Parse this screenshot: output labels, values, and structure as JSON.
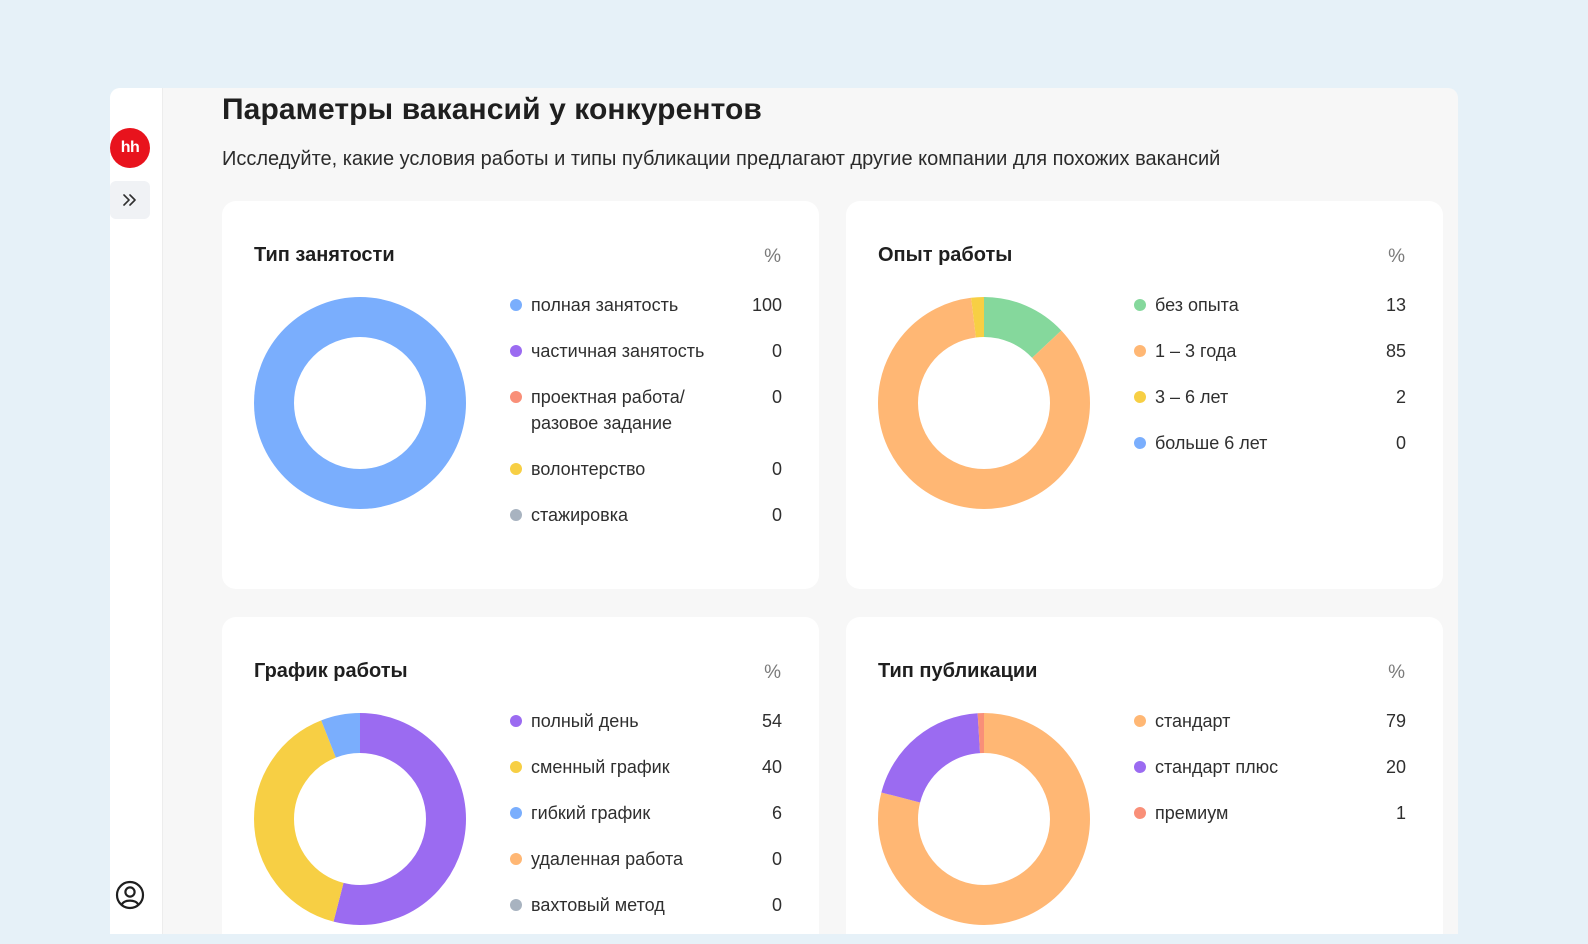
{
  "app": {
    "logo_text": "hh"
  },
  "page": {
    "title": "Параметры вакансий у конкурентов",
    "subtitle": "Исследуйте, какие условия работы и типы публикации предлагают другие компании для похожих вакансий"
  },
  "icons": {
    "expand": "double-chevron-right-icon",
    "profile": "user-circle-icon"
  },
  "colors": {
    "blue": "#7aaefd",
    "purple": "#9b6bf1",
    "salmon": "#f98f78",
    "yellow": "#f7cf44",
    "gray": "#a8b3c0",
    "green": "#85d89c",
    "orange": "#ffb774"
  },
  "cards": [
    {
      "title": "Тип занятости",
      "unit": "%",
      "chart_data": {
        "type": "donut",
        "series": [
          {
            "label": "полная занятость",
            "value": 100,
            "color": "#7aaefd"
          },
          {
            "label": "частичная занятость",
            "value": 0,
            "color": "#9b6bf1"
          },
          {
            "label": "проектная работа/ разовое задание",
            "value": 0,
            "color": "#f98f78"
          },
          {
            "label": "волонтерство",
            "value": 0,
            "color": "#f7cf44"
          },
          {
            "label": "стажировка",
            "value": 0,
            "color": "#a8b3c0"
          }
        ]
      }
    },
    {
      "title": "Опыт работы",
      "unit": "%",
      "chart_data": {
        "type": "donut",
        "series": [
          {
            "label": "без опыта",
            "value": 13,
            "color": "#85d89c"
          },
          {
            "label": "1 – 3 года",
            "value": 85,
            "color": "#ffb774"
          },
          {
            "label": "3 – 6 лет",
            "value": 2,
            "color": "#f7cf44"
          },
          {
            "label": "больше 6 лет",
            "value": 0,
            "color": "#7aaefd"
          }
        ]
      }
    },
    {
      "title": "График работы",
      "unit": "%",
      "chart_data": {
        "type": "donut",
        "series": [
          {
            "label": "полный день",
            "value": 54,
            "color": "#9b6bf1"
          },
          {
            "label": "сменный график",
            "value": 40,
            "color": "#f7cf44"
          },
          {
            "label": "гибкий график",
            "value": 6,
            "color": "#7aaefd"
          },
          {
            "label": "удаленная работа",
            "value": 0,
            "color": "#ffb774"
          },
          {
            "label": "вахтовый метод",
            "value": 0,
            "color": "#a8b3c0"
          }
        ]
      }
    },
    {
      "title": "Тип публикации",
      "unit": "%",
      "chart_data": {
        "type": "donut",
        "series": [
          {
            "label": "стандарт",
            "value": 79,
            "color": "#ffb774"
          },
          {
            "label": "стандарт плюс",
            "value": 20,
            "color": "#9b6bf1"
          },
          {
            "label": "премиум",
            "value": 1,
            "color": "#f98f78"
          }
        ]
      }
    }
  ]
}
